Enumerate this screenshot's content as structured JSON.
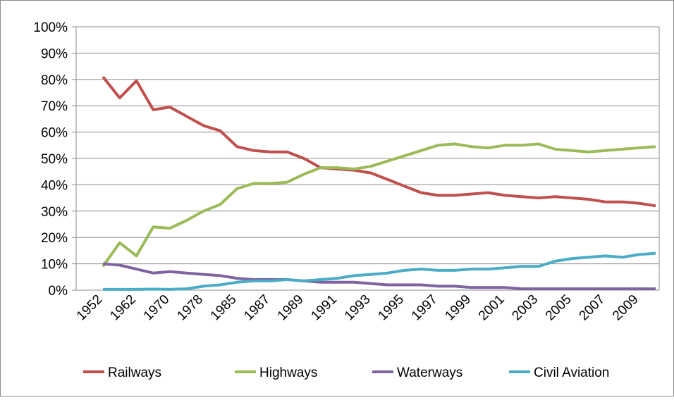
{
  "chart_data": {
    "type": "line",
    "categories": [
      "1952",
      null,
      "1962",
      null,
      "1970",
      null,
      "1978",
      null,
      "1985",
      null,
      "1987",
      null,
      "1989",
      null,
      "1991",
      null,
      "1993",
      null,
      "1995",
      null,
      "1997",
      null,
      "1999",
      null,
      "2001",
      null,
      "2003",
      null,
      "2005",
      null,
      "2007",
      null,
      "2009",
      null
    ],
    "series": [
      {
        "name": "Railways",
        "color": "#c0504d",
        "values": [
          81,
          73,
          79.5,
          68.5,
          69.5,
          66,
          62.5,
          60.5,
          54.5,
          53,
          52.5,
          52.5,
          50,
          46.5,
          46,
          45.5,
          44.5,
          42,
          39.5,
          37,
          36,
          36,
          36.5,
          37,
          36,
          35.5,
          35,
          35.5,
          35,
          34.5,
          33.5,
          33.5,
          33,
          32
        ]
      },
      {
        "name": "Highways",
        "color": "#9bbb59",
        "values": [
          9,
          18,
          13,
          24,
          23.5,
          26.5,
          30,
          32.5,
          38.5,
          40.5,
          40.5,
          41,
          44,
          46.5,
          46.5,
          46,
          47,
          49,
          51,
          53,
          55,
          55.5,
          54.5,
          54,
          55,
          55,
          55.5,
          53.5,
          53,
          52.5,
          53,
          53.5,
          54,
          54.5
        ]
      },
      {
        "name": "Waterways",
        "color": "#8064a2",
        "values": [
          10,
          9.5,
          8,
          6.5,
          7,
          6.5,
          6,
          5.5,
          4.5,
          4,
          4,
          4,
          3.5,
          3,
          3,
          3,
          2.5,
          2,
          2,
          2,
          1.5,
          1.5,
          1,
          1,
          1,
          0.5,
          0.5,
          0.5,
          0.5,
          0.5,
          0.5,
          0.5,
          0.5,
          0.5
        ]
      },
      {
        "name": "Civil Aviation",
        "color": "#4bacc6",
        "values": [
          0.3,
          0.3,
          0.3,
          0.4,
          0.3,
          0.5,
          1.5,
          2,
          3,
          3.5,
          3.5,
          4,
          3.5,
          4,
          4.5,
          5.5,
          6,
          6.5,
          7.5,
          8,
          7.5,
          7.5,
          8,
          8,
          8.5,
          9,
          9,
          11,
          12,
          12.5,
          13,
          12.5,
          13.5,
          14
        ]
      }
    ],
    "ylim": [
      0,
      100
    ],
    "yticks": [
      {
        "value": 0,
        "label": "0%"
      },
      {
        "value": 10,
        "label": "10%"
      },
      {
        "value": 20,
        "label": "20%"
      },
      {
        "value": 30,
        "label": "30%"
      },
      {
        "value": 40,
        "label": "40%"
      },
      {
        "value": 50,
        "label": "50%"
      },
      {
        "value": 60,
        "label": "60%"
      },
      {
        "value": 70,
        "label": "70%"
      },
      {
        "value": 80,
        "label": "80%"
      },
      {
        "value": 90,
        "label": "90%"
      },
      {
        "value": 100,
        "label": "100%"
      }
    ],
    "grid": true,
    "legend": "bottom"
  }
}
